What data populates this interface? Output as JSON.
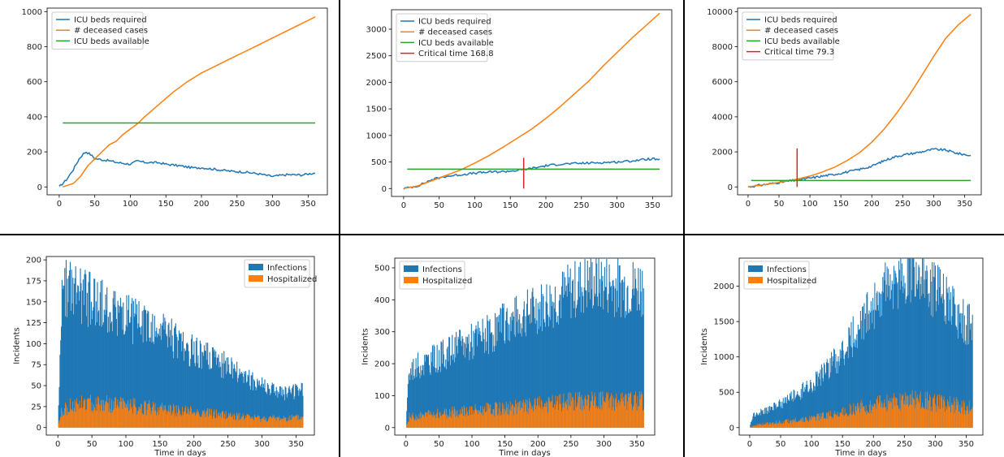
{
  "colors": {
    "blue": "#1f77b4",
    "orange": "#ff7f0e",
    "green": "#2ca02c",
    "red": "#d62728",
    "divider": "#000000"
  },
  "chart_data": [
    {
      "type": "line",
      "position": "top-left",
      "ylim": [
        0,
        1000
      ],
      "xlim": [
        0,
        360
      ],
      "xticks": [
        "0",
        "50",
        "100",
        "150",
        "200",
        "250",
        "300",
        "350"
      ],
      "yticks": [
        "0",
        "200",
        "400",
        "600",
        "800",
        "1000"
      ],
      "legend": [
        "ICU beds required",
        "# deceased cases",
        "ICU beds available"
      ],
      "series": [
        {
          "name": "ICU beds required",
          "color": "blue",
          "points": [
            [
              0,
              0
            ],
            [
              10,
              40
            ],
            [
              20,
              100
            ],
            [
              28,
              160
            ],
            [
              34,
              190
            ],
            [
              38,
              200
            ],
            [
              44,
              185
            ],
            [
              50,
              162
            ],
            [
              60,
              155
            ],
            [
              70,
              150
            ],
            [
              80,
              140
            ],
            [
              90,
              135
            ],
            [
              100,
              130
            ],
            [
              110,
              148
            ],
            [
              120,
              140
            ],
            [
              140,
              138
            ],
            [
              150,
              130
            ],
            [
              170,
              120
            ],
            [
              190,
              108
            ],
            [
              200,
              110
            ],
            [
              220,
              100
            ],
            [
              240,
              90
            ],
            [
              260,
              85
            ],
            [
              280,
              75
            ],
            [
              300,
              60
            ],
            [
              320,
              70
            ],
            [
              340,
              68
            ],
            [
              360,
              80
            ]
          ]
        },
        {
          "name": "# deceased cases",
          "color": "orange",
          "points": [
            [
              5,
              0
            ],
            [
              20,
              20
            ],
            [
              30,
              60
            ],
            [
              40,
              120
            ],
            [
              50,
              160
            ],
            [
              60,
              200
            ],
            [
              70,
              240
            ],
            [
              80,
              260
            ],
            [
              90,
              300
            ],
            [
              100,
              330
            ],
            [
              110,
              360
            ],
            [
              120,
              400
            ],
            [
              140,
              470
            ],
            [
              160,
              540
            ],
            [
              180,
              600
            ],
            [
              200,
              650
            ],
            [
              220,
              690
            ],
            [
              240,
              730
            ],
            [
              260,
              770
            ],
            [
              280,
              810
            ],
            [
              300,
              850
            ],
            [
              320,
              890
            ],
            [
              340,
              930
            ],
            [
              360,
              970
            ]
          ]
        },
        {
          "name": "ICU beds available",
          "color": "green",
          "points": [
            [
              5,
              365
            ],
            [
              360,
              365
            ]
          ]
        }
      ]
    },
    {
      "type": "line",
      "position": "top-middle",
      "ylim": [
        0,
        3300
      ],
      "xlim": [
        0,
        360
      ],
      "xticks": [
        "0",
        "50",
        "100",
        "150",
        "200",
        "250",
        "300",
        "350"
      ],
      "yticks": [
        "0",
        "500",
        "1000",
        "1500",
        "2000",
        "2500",
        "3000"
      ],
      "legend": [
        "ICU beds required",
        "# deceased cases",
        "ICU beds available",
        "Critical time 168.8"
      ],
      "critical_time": 168.8,
      "series": [
        {
          "name": "ICU beds required",
          "color": "blue",
          "points": [
            [
              0,
              0
            ],
            [
              20,
              50
            ],
            [
              40,
              170
            ],
            [
              60,
              230
            ],
            [
              80,
              260
            ],
            [
              100,
              290
            ],
            [
              120,
              310
            ],
            [
              140,
              320
            ],
            [
              160,
              340
            ],
            [
              180,
              380
            ],
            [
              200,
              430
            ],
            [
              220,
              460
            ],
            [
              240,
              470
            ],
            [
              260,
              480
            ],
            [
              280,
              490
            ],
            [
              300,
              500
            ],
            [
              320,
              520
            ],
            [
              340,
              550
            ],
            [
              350,
              560
            ],
            [
              360,
              540
            ]
          ]
        },
        {
          "name": "# deceased cases",
          "color": "orange",
          "points": [
            [
              0,
              0
            ],
            [
              20,
              50
            ],
            [
              40,
              150
            ],
            [
              60,
              250
            ],
            [
              80,
              350
            ],
            [
              100,
              480
            ],
            [
              120,
              620
            ],
            [
              140,
              780
            ],
            [
              160,
              950
            ],
            [
              180,
              1120
            ],
            [
              200,
              1320
            ],
            [
              220,
              1540
            ],
            [
              240,
              1780
            ],
            [
              260,
              2020
            ],
            [
              280,
              2300
            ],
            [
              300,
              2560
            ],
            [
              320,
              2820
            ],
            [
              340,
              3060
            ],
            [
              360,
              3300
            ]
          ]
        },
        {
          "name": "ICU beds available",
          "color": "green",
          "points": [
            [
              5,
              365
            ],
            [
              360,
              365
            ]
          ]
        },
        {
          "name": "Critical time 168.8",
          "color": "red",
          "points": [
            [
              168.8,
              0
            ],
            [
              168.8,
              580
            ]
          ]
        }
      ]
    },
    {
      "type": "line",
      "position": "top-right",
      "ylim": [
        0,
        10000
      ],
      "xlim": [
        0,
        360
      ],
      "xticks": [
        "0",
        "50",
        "100",
        "150",
        "200",
        "250",
        "300",
        "350"
      ],
      "yticks": [
        "0",
        "2000",
        "4000",
        "6000",
        "8000",
        "10000"
      ],
      "legend": [
        "ICU beds required",
        "# deceased cases",
        "ICU beds available",
        "Critical time 79.3"
      ],
      "critical_time": 79.3,
      "series": [
        {
          "name": "ICU beds required",
          "color": "blue",
          "points": [
            [
              0,
              0
            ],
            [
              20,
              100
            ],
            [
              40,
              200
            ],
            [
              60,
              300
            ],
            [
              80,
              400
            ],
            [
              100,
              500
            ],
            [
              120,
              620
            ],
            [
              140,
              720
            ],
            [
              160,
              850
            ],
            [
              180,
              1000
            ],
            [
              200,
              1180
            ],
            [
              220,
              1500
            ],
            [
              240,
              1750
            ],
            [
              260,
              1880
            ],
            [
              280,
              2000
            ],
            [
              300,
              2150
            ],
            [
              320,
              2100
            ],
            [
              340,
              1900
            ],
            [
              350,
              1850
            ],
            [
              360,
              1780
            ]
          ]
        },
        {
          "name": "# deceased cases",
          "color": "orange",
          "points": [
            [
              0,
              0
            ],
            [
              20,
              100
            ],
            [
              40,
              200
            ],
            [
              60,
              320
            ],
            [
              80,
              450
            ],
            [
              100,
              620
            ],
            [
              120,
              850
            ],
            [
              140,
              1130
            ],
            [
              160,
              1500
            ],
            [
              180,
              1950
            ],
            [
              200,
              2550
            ],
            [
              220,
              3300
            ],
            [
              240,
              4200
            ],
            [
              260,
              5200
            ],
            [
              280,
              6300
            ],
            [
              300,
              7450
            ],
            [
              320,
              8500
            ],
            [
              340,
              9250
            ],
            [
              360,
              9850
            ]
          ]
        },
        {
          "name": "ICU beds available",
          "color": "green",
          "points": [
            [
              5,
              365
            ],
            [
              360,
              365
            ]
          ]
        },
        {
          "name": "Critical time 79.3",
          "color": "red",
          "points": [
            [
              79.3,
              0
            ],
            [
              79.3,
              2200
            ]
          ]
        }
      ]
    },
    {
      "type": "bar",
      "position": "bottom-left",
      "ylim": [
        0,
        200
      ],
      "xlim": [
        0,
        360
      ],
      "xlabel": "Time in days",
      "ylabel": "Incidents",
      "xticks": [
        "0",
        "50",
        "100",
        "150",
        "200",
        "250",
        "300",
        "350"
      ],
      "yticks": [
        "0",
        "25",
        "50",
        "75",
        "100",
        "125",
        "150",
        "175",
        "200"
      ],
      "legend": [
        "Infections",
        "Hospitalized"
      ],
      "legend_position": "top-right",
      "infections_trend": [
        [
          0,
          0
        ],
        [
          2,
          60
        ],
        [
          5,
          150
        ],
        [
          10,
          170
        ],
        [
          20,
          160
        ],
        [
          50,
          150
        ],
        [
          100,
          130
        ],
        [
          150,
          115
        ],
        [
          200,
          90
        ],
        [
          250,
          72
        ],
        [
          300,
          50
        ],
        [
          330,
          40
        ],
        [
          360,
          45
        ]
      ],
      "hospitalized_trend": [
        [
          0,
          0
        ],
        [
          5,
          20
        ],
        [
          20,
          28
        ],
        [
          60,
          30
        ],
        [
          100,
          27
        ],
        [
          150,
          23
        ],
        [
          200,
          19
        ],
        [
          250,
          15
        ],
        [
          300,
          11
        ],
        [
          360,
          12
        ]
      ]
    },
    {
      "type": "bar",
      "position": "bottom-middle",
      "ylim": [
        0,
        520
      ],
      "xlim": [
        0,
        360
      ],
      "xlabel": "Time in days",
      "ylabel": "Incidents",
      "xticks": [
        "0",
        "50",
        "100",
        "150",
        "200",
        "250",
        "300",
        "350"
      ],
      "yticks": [
        "0",
        "100",
        "200",
        "300",
        "400",
        "500"
      ],
      "legend": [
        "Infections",
        "Hospitalized"
      ],
      "legend_position": "top-left",
      "infections_trend": [
        [
          0,
          0
        ],
        [
          3,
          150
        ],
        [
          10,
          185
        ],
        [
          50,
          220
        ],
        [
          100,
          270
        ],
        [
          150,
          320
        ],
        [
          200,
          370
        ],
        [
          250,
          420
        ],
        [
          280,
          450
        ],
        [
          300,
          445
        ],
        [
          330,
          430
        ],
        [
          360,
          440
        ]
      ],
      "hospitalized_trend": [
        [
          0,
          0
        ],
        [
          5,
          35
        ],
        [
          50,
          45
        ],
        [
          100,
          55
        ],
        [
          150,
          62
        ],
        [
          200,
          72
        ],
        [
          250,
          85
        ],
        [
          300,
          88
        ],
        [
          360,
          85
        ]
      ]
    },
    {
      "type": "bar",
      "position": "bottom-right",
      "ylim": [
        0,
        2350
      ],
      "xlim": [
        0,
        360
      ],
      "xlabel": "Time in days",
      "ylabel": "Incidents",
      "xticks": [
        "0",
        "50",
        "100",
        "150",
        "200",
        "250",
        "300",
        "350"
      ],
      "yticks": [
        "0",
        "500",
        "1000",
        "1500",
        "2000"
      ],
      "legend": [
        "Infections",
        "Hospitalized"
      ],
      "legend_position": "top-left",
      "infections_trend": [
        [
          0,
          0
        ],
        [
          5,
          180
        ],
        [
          30,
          250
        ],
        [
          60,
          380
        ],
        [
          100,
          600
        ],
        [
          140,
          950
        ],
        [
          180,
          1450
        ],
        [
          210,
          1850
        ],
        [
          240,
          2120
        ],
        [
          260,
          2180
        ],
        [
          280,
          2120
        ],
        [
          300,
          1950
        ],
        [
          330,
          1650
        ],
        [
          360,
          1400
        ]
      ],
      "hospitalized_trend": [
        [
          0,
          0
        ],
        [
          10,
          40
        ],
        [
          50,
          80
        ],
        [
          100,
          130
        ],
        [
          150,
          230
        ],
        [
          200,
          330
        ],
        [
          250,
          400
        ],
        [
          280,
          390
        ],
        [
          320,
          340
        ],
        [
          360,
          290
        ]
      ]
    }
  ],
  "panels": [
    {
      "plot": {
        "left": 58,
        "top": 10,
        "width": 345,
        "height": 230
      }
    },
    {
      "plot": {
        "left": 482,
        "top": 12,
        "width": 345,
        "height": 230
      }
    },
    {
      "plot": {
        "left": 908,
        "top": 10,
        "width": 300,
        "height": 230
      }
    },
    {
      "plot": {
        "left": 57,
        "top": 316,
        "width": 330,
        "height": 220
      }
    },
    {
      "plot": {
        "left": 486,
        "top": 318,
        "width": 320,
        "height": 218
      }
    },
    {
      "plot": {
        "left": 910,
        "top": 318,
        "width": 300,
        "height": 218
      }
    }
  ]
}
